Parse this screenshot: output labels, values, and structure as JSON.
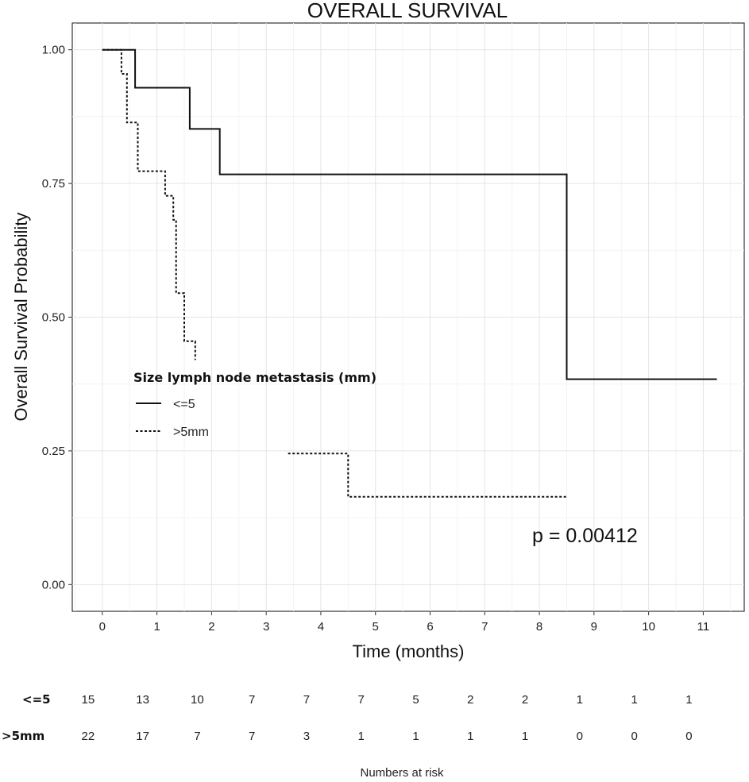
{
  "chart_data": {
    "type": "line",
    "subtype": "kaplan-meier-step",
    "title": "OVERALL SURVIVAL",
    "xlabel": "Time (months)",
    "ylabel": "Overall Survival Probability",
    "xlim": [
      -0.55,
      11.75
    ],
    "ylim": [
      -0.05,
      1.05
    ],
    "x_ticks": [
      "0",
      "1",
      "2",
      "3",
      "4",
      "5",
      "6",
      "7",
      "8",
      "9",
      "10",
      "11"
    ],
    "y_ticks": [
      "0.00",
      "0.25",
      "0.50",
      "0.75",
      "1.00"
    ],
    "grid": true,
    "legend": {
      "title": "Size lymph node metastasis (mm)",
      "placement": "center-left"
    },
    "annotation": "p = 0.00412",
    "series": [
      {
        "name": "<=5",
        "style": "solid",
        "segments": [
          [
            [
              0,
              1.0
            ],
            [
              0.6,
              1.0
            ],
            [
              0.6,
              0.929
            ],
            [
              1.6,
              0.929
            ],
            [
              1.6,
              0.852
            ],
            [
              2.15,
              0.852
            ],
            [
              2.15,
              0.767
            ],
            [
              8.5,
              0.767
            ],
            [
              8.5,
              0.384
            ],
            [
              11.25,
              0.384
            ]
          ]
        ]
      },
      {
        "name": ">5mm",
        "style": "dotted",
        "segments": [
          [
            [
              0,
              1.0
            ],
            [
              0.35,
              1.0
            ],
            [
              0.35,
              0.955
            ],
            [
              0.45,
              0.955
            ],
            [
              0.45,
              0.864
            ],
            [
              0.65,
              0.864
            ],
            [
              0.65,
              0.773
            ],
            [
              1.15,
              0.773
            ],
            [
              1.15,
              0.727
            ],
            [
              1.3,
              0.727
            ],
            [
              1.3,
              0.682
            ],
            [
              1.35,
              0.682
            ],
            [
              1.35,
              0.545
            ],
            [
              1.5,
              0.545
            ],
            [
              1.5,
              0.455
            ],
            [
              1.7,
              0.455
            ],
            [
              1.7,
              0.42
            ]
          ],
          [
            [
              3.4,
              0.245
            ],
            [
              4.5,
              0.245
            ],
            [
              4.5,
              0.164
            ],
            [
              8.5,
              0.164
            ]
          ]
        ]
      }
    ],
    "risk_table": {
      "title": "Numbers at risk",
      "times": [
        0,
        1,
        2,
        3,
        4,
        5,
        6,
        7,
        8,
        9,
        10,
        11
      ],
      "rows": [
        {
          "label": "<=5",
          "values": [
            "15",
            "13",
            "10",
            "7",
            "7",
            "7",
            "5",
            "2",
            "2",
            "1",
            "1",
            "1"
          ]
        },
        {
          "label": ">5mm",
          "values": [
            "22",
            "17",
            "7",
            "7",
            "3",
            "1",
            "1",
            "1",
            "1",
            "0",
            "0",
            "0"
          ]
        }
      ]
    }
  }
}
